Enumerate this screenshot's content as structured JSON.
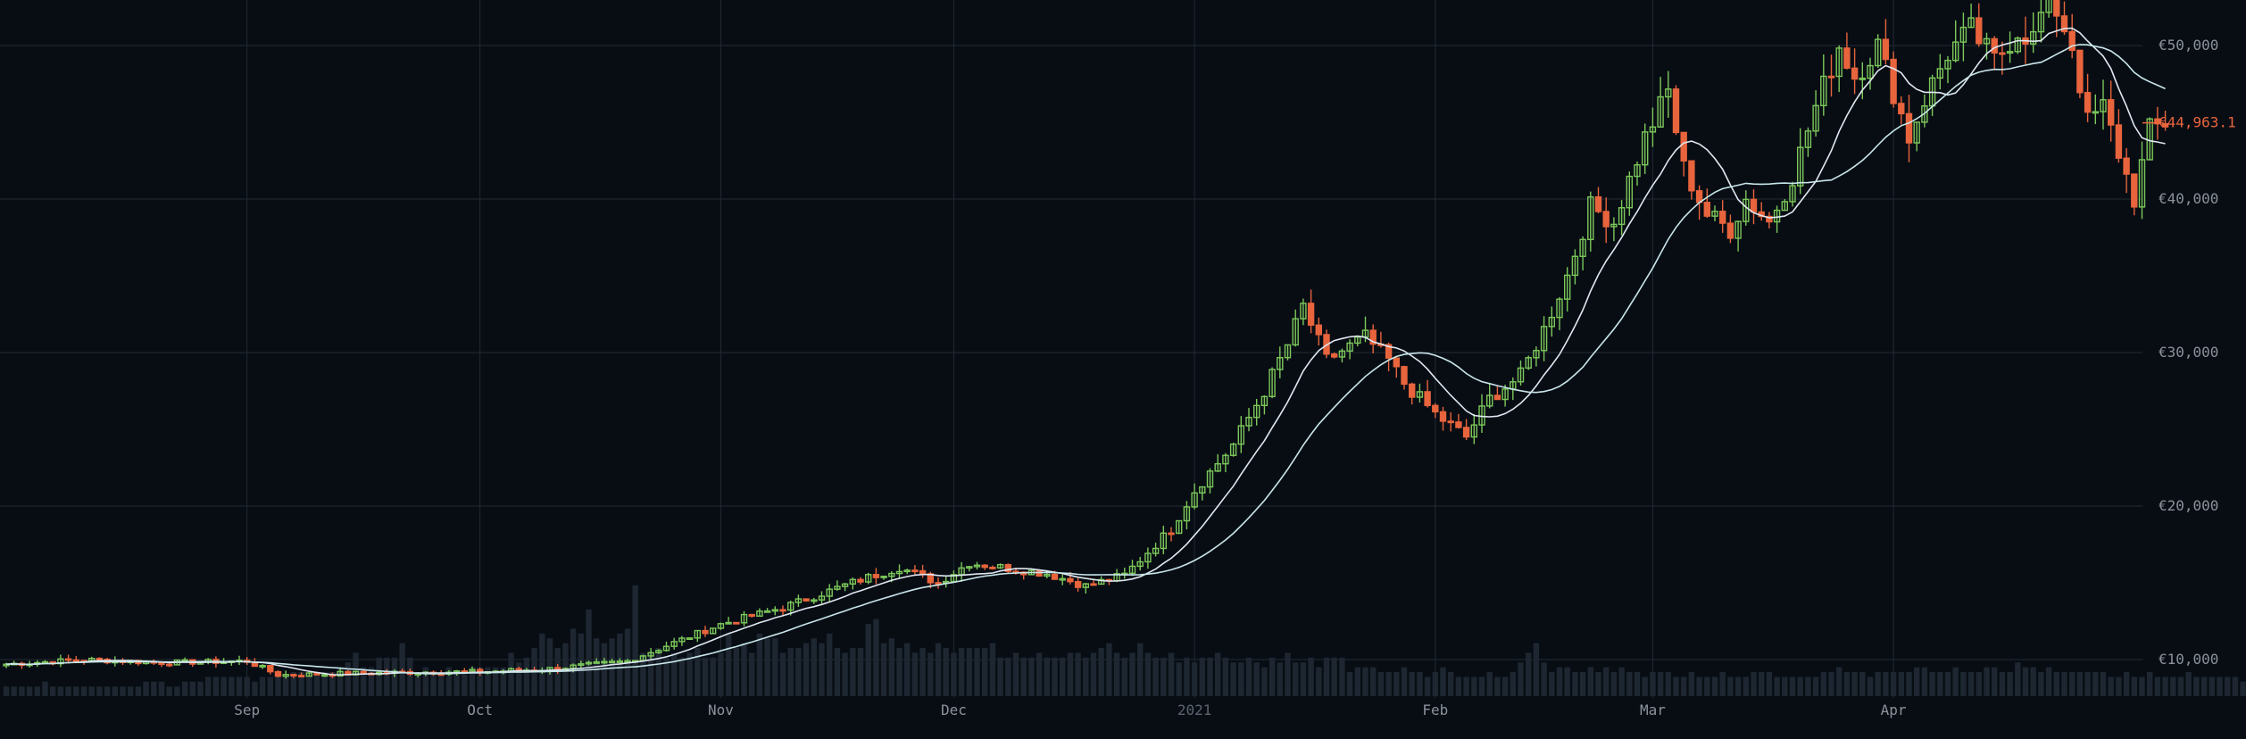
{
  "chart_data": {
    "type": "candlestick",
    "currency_prefix": "€",
    "y_ticks": [
      "€10,000",
      "€20,000",
      "€30,000",
      "€40,000",
      "€50,000"
    ],
    "y_tick_values": [
      10000,
      20000,
      30000,
      40000,
      50000
    ],
    "ylim": [
      7600,
      56000
    ],
    "x_ticks": [
      "Sep",
      "Oct",
      "Nov",
      "Dec",
      "2021",
      "Feb",
      "Mar",
      "Apr"
    ],
    "x_tick_days": [
      31,
      61,
      92,
      122,
      153,
      184,
      212,
      243
    ],
    "last_price_label": "€44,963.1",
    "last_price": 44963.1,
    "grid": true,
    "colors": {
      "up": "#7cc85a",
      "down": "#e8643c",
      "ma_fast": "#dfe8f2",
      "ma_slow": "#c8e6ea",
      "volume": "#1d2631",
      "grid": "#222a33",
      "axis_text": "#8b929b"
    },
    "price_anchors": [
      [
        0,
        9700
      ],
      [
        10,
        10000
      ],
      [
        20,
        9800
      ],
      [
        31,
        9900
      ],
      [
        35,
        9000
      ],
      [
        45,
        9100
      ],
      [
        55,
        9200
      ],
      [
        61,
        9200
      ],
      [
        70,
        9400
      ],
      [
        80,
        9900
      ],
      [
        92,
        12300
      ],
      [
        100,
        13400
      ],
      [
        110,
        15200
      ],
      [
        115,
        16000
      ],
      [
        120,
        15000
      ],
      [
        124,
        16300
      ],
      [
        134,
        15600
      ],
      [
        139,
        14800
      ],
      [
        144,
        15500
      ],
      [
        150,
        18500
      ],
      [
        153,
        21000
      ],
      [
        158,
        24000
      ],
      [
        162,
        27500
      ],
      [
        165,
        30500
      ],
      [
        167,
        33000
      ],
      [
        170,
        29500
      ],
      [
        175,
        31000
      ],
      [
        178,
        29500
      ],
      [
        180,
        28000
      ],
      [
        184,
        26000
      ],
      [
        188,
        24500
      ],
      [
        191,
        27000
      ],
      [
        195,
        28500
      ],
      [
        198,
        31500
      ],
      [
        201,
        35000
      ],
      [
        204,
        39500
      ],
      [
        207,
        38500
      ],
      [
        211,
        44000
      ],
      [
        214,
        47000
      ],
      [
        216,
        42000
      ],
      [
        219,
        39000
      ],
      [
        222,
        38000
      ],
      [
        224,
        40000
      ],
      [
        227,
        38500
      ],
      [
        230,
        41500
      ],
      [
        233,
        46000
      ],
      [
        236,
        50000
      ],
      [
        238,
        48000
      ],
      [
        241,
        50000
      ],
      [
        243,
        47000
      ],
      [
        245,
        44000
      ],
      [
        247,
        46500
      ],
      [
        250,
        49500
      ],
      [
        253,
        51000
      ],
      [
        256,
        49000
      ],
      [
        259,
        51000
      ],
      [
        261,
        50500
      ],
      [
        263,
        53500
      ],
      [
        266,
        50000
      ],
      [
        268,
        45000
      ],
      [
        270,
        46000
      ],
      [
        272,
        43000
      ],
      [
        274,
        40000
      ],
      [
        276,
        44500
      ],
      [
        278,
        44963
      ]
    ],
    "volume_samples": [
      2,
      2,
      2,
      2,
      2,
      3,
      2,
      2,
      2,
      2,
      2,
      2,
      2,
      2,
      2,
      2,
      2,
      2,
      3,
      3,
      3,
      2,
      2,
      3,
      3,
      3,
      4,
      4,
      4,
      4,
      4,
      4,
      3,
      4,
      4,
      4,
      4,
      5,
      5,
      5,
      5,
      5,
      5,
      6,
      7,
      9,
      6,
      6,
      8,
      8,
      8,
      11,
      8,
      5,
      6,
      5,
      5,
      6,
      5,
      5,
      6,
      6,
      6,
      6,
      6,
      9,
      7,
      8,
      10,
      13,
      12,
      10,
      11,
      14,
      13,
      18,
      12,
      11,
      12,
      13,
      14,
      23,
      9,
      9,
      10,
      8,
      9,
      8,
      9,
      10,
      8,
      8,
      9,
      13,
      10,
      11,
      9,
      13,
      12,
      12,
      9,
      10,
      10,
      11,
      12,
      11,
      13,
      10,
      9,
      10,
      10,
      15,
      16,
      11,
      12,
      10,
      11,
      9,
      10,
      9,
      11,
      10,
      9,
      10,
      10,
      10,
      10,
      11,
      8,
      8,
      9,
      8,
      8,
      9,
      8,
      8,
      8,
      9,
      9,
      8,
      9,
      10,
      11,
      9,
      8,
      9,
      11,
      9,
      8,
      8,
      9,
      7,
      8,
      7,
      8,
      8,
      9,
      8,
      7,
      7,
      8,
      7,
      6,
      8,
      7,
      9,
      7,
      7,
      8,
      6,
      8,
      8,
      8,
      5,
      6,
      6,
      6,
      5,
      5,
      5,
      6,
      5,
      5,
      4,
      5,
      6,
      5,
      4,
      4,
      4,
      4,
      5,
      4,
      4,
      5,
      7,
      9,
      11,
      7,
      5,
      6,
      6,
      5,
      5,
      6,
      5,
      6,
      5,
      6,
      5,
      5,
      4,
      5,
      5,
      5,
      4,
      4,
      5,
      4,
      4,
      4,
      5,
      4,
      4,
      4,
      5,
      5,
      5,
      4,
      4,
      4,
      4,
      4,
      4,
      5,
      5,
      6,
      5,
      5,
      5,
      4,
      5,
      5,
      5,
      5,
      5,
      6,
      6,
      5,
      5,
      5,
      6,
      5,
      5,
      5,
      6,
      6,
      5,
      5,
      7,
      6,
      6,
      5,
      6,
      5,
      5,
      5,
      5,
      5,
      5,
      5,
      4,
      4,
      5,
      4,
      4,
      5,
      4,
      4,
      4,
      4,
      5,
      4,
      4,
      4,
      4,
      4,
      4,
      3
    ]
  }
}
